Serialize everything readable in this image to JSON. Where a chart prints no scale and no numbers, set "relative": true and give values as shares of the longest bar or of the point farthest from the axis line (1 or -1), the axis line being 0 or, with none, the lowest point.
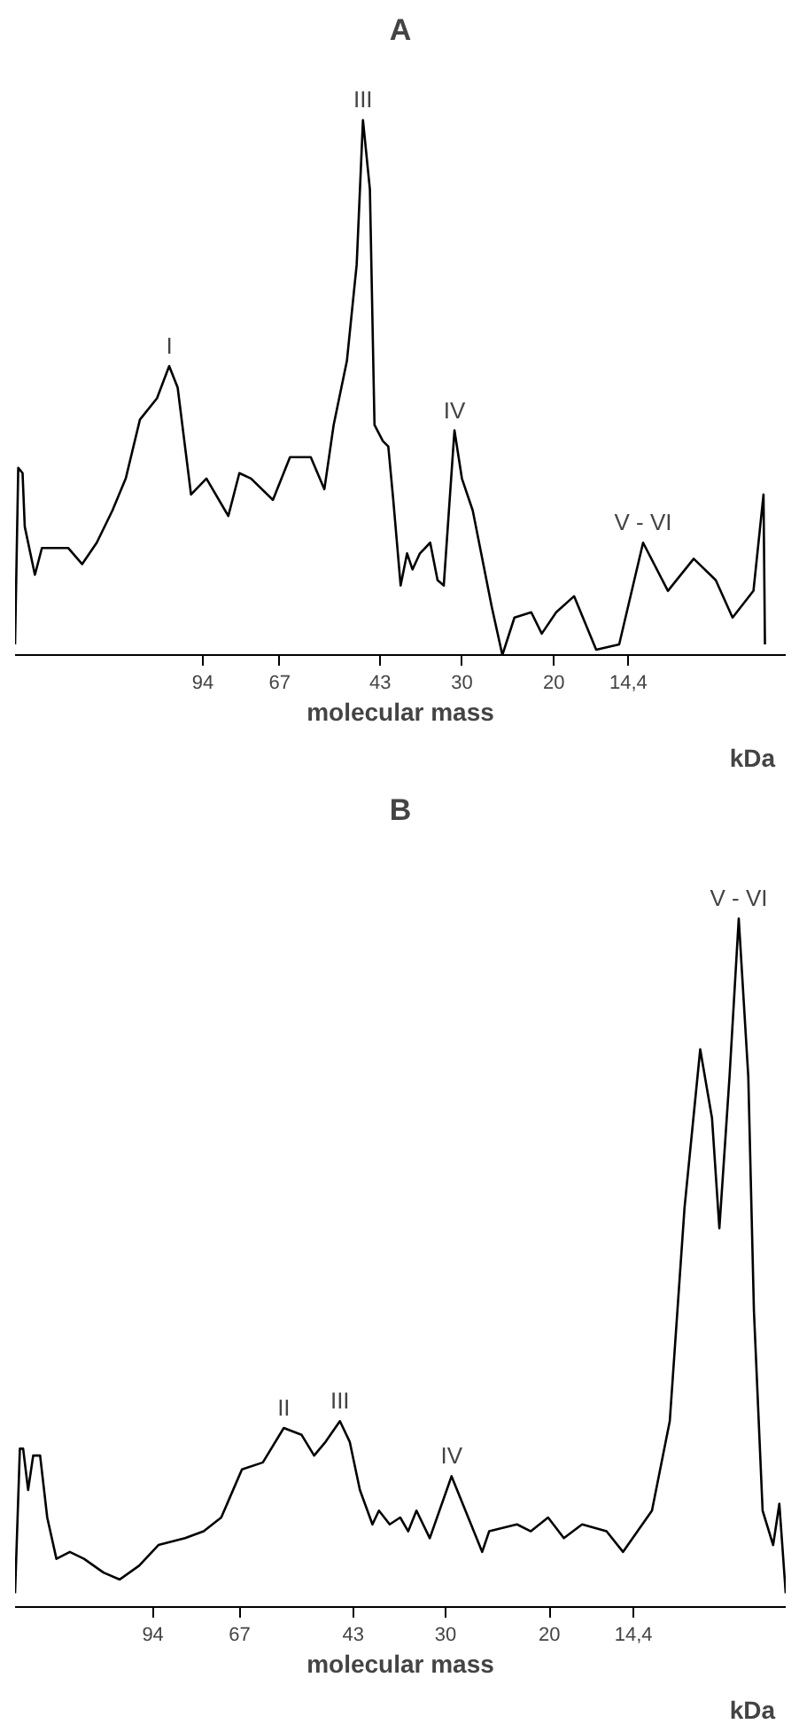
{
  "chart_data": [
    {
      "type": "line",
      "title": "A",
      "xlabel": "molecular mass",
      "relative": true,
      "log": "x",
      "tick_labels": "x",
      "color": "#000000",
      "xlim": [
        215,
        7.2
      ],
      "xticks": [
        94,
        67,
        43,
        30,
        20,
        {
          "value": 14.4,
          "label": "14,4"
        }
      ],
      "x": [
        215,
        212,
        208,
        206,
        197,
        191,
        170,
        160,
        150,
        140,
        132,
        124,
        115,
        109,
        105,
        99,
        92.5,
        84,
        80,
        76,
        69,
        64,
        58.4,
        55,
        52.8,
        49.8,
        47.7,
        46.4,
        45,
        44.1,
        42.5,
        41.5,
        40.6,
        39.3,
        38.2,
        37.3,
        36.1,
        34.5,
        33.4,
        32.5,
        31,
        30,
        28.6,
        26.3,
        25.1,
        23.8,
        22.1,
        21.1,
        19.8,
        18.3,
        16.6,
        15.0,
        13.5,
        12.1,
        10.8,
        9.8,
        9.1,
        8.3,
        7.94,
        7.89
      ],
      "values": [
        0.02,
        0.35,
        0.34,
        0.24,
        0.15,
        0.2,
        0.2,
        0.17,
        0.21,
        0.27,
        0.33,
        0.44,
        0.48,
        0.54,
        0.5,
        0.3,
        0.33,
        0.26,
        0.34,
        0.33,
        0.29,
        0.37,
        0.37,
        0.31,
        0.43,
        0.55,
        0.73,
        1.0,
        0.87,
        0.43,
        0.4,
        0.39,
        0.29,
        0.13,
        0.19,
        0.16,
        0.19,
        0.21,
        0.14,
        0.13,
        0.42,
        0.33,
        0.27,
        0.09,
        0.0,
        0.07,
        0.08,
        0.04,
        0.08,
        0.11,
        0.01,
        0.02,
        0.21,
        0.12,
        0.18,
        0.14,
        0.07,
        0.12,
        0.3,
        0.02
      ],
      "annotations": [
        {
          "text": "I",
          "x": 109,
          "y": 0.54
        },
        {
          "text": "III",
          "x": 46.4,
          "y": 1.0
        },
        {
          "text": "IV",
          "x": 31,
          "y": 0.42
        },
        {
          "text": "V - VI",
          "x": 13.5,
          "y": 0.21
        },
        "kDa"
      ]
    },
    {
      "type": "line",
      "title": "B",
      "xlabel": "molecular mass",
      "relative": true,
      "log": "x",
      "tick_labels": "x",
      "color": "#000000",
      "xlim": [
        161,
        7.95
      ],
      "xticks": [
        94,
        67,
        43,
        30,
        20,
        {
          "value": 14.4,
          "label": "14,4"
        }
      ],
      "x": [
        161,
        158,
        156,
        153,
        150,
        146,
        142,
        137,
        130,
        123,
        114,
        107,
        99.2,
        92,
        82.9,
        77.1,
        72,
        66.4,
        61.2,
        56.4,
        52.6,
        50.1,
        47.9,
        45.3,
        43.6,
        41.9,
        39.9,
        38.9,
        37.3,
        35.8,
        34.7,
        33.6,
        31.9,
        29.3,
        26,
        25.3,
        22.7,
        21.5,
        20.1,
        18.9,
        17.6,
        16,
        15,
        13.4,
        12.5,
        11.8,
        11.1,
        10.6,
        10.3,
        9.9,
        9.55,
        9.2,
        9.0,
        8.7,
        8.35,
        8.15,
        7.95
      ],
      "values": [
        0.02,
        0.23,
        0.23,
        0.17,
        0.22,
        0.22,
        0.13,
        0.07,
        0.08,
        0.07,
        0.05,
        0.04,
        0.06,
        0.09,
        0.1,
        0.11,
        0.13,
        0.2,
        0.21,
        0.26,
        0.25,
        0.22,
        0.24,
        0.27,
        0.24,
        0.17,
        0.12,
        0.14,
        0.12,
        0.13,
        0.11,
        0.14,
        0.1,
        0.19,
        0.08,
        0.11,
        0.12,
        0.11,
        0.13,
        0.1,
        0.12,
        0.11,
        0.08,
        0.14,
        0.27,
        0.58,
        0.81,
        0.71,
        0.55,
        0.77,
        1.0,
        0.77,
        0.43,
        0.14,
        0.09,
        0.15,
        0.02
      ],
      "annotations": [
        {
          "text": "II",
          "x": 56.4,
          "y": 0.26
        },
        {
          "text": "III",
          "x": 45.3,
          "y": 0.27
        },
        {
          "text": "IV",
          "x": 29.3,
          "y": 0.19
        },
        {
          "text": "V - VI",
          "x": 9.55,
          "y": 1.0
        },
        "kDa"
      ]
    }
  ]
}
